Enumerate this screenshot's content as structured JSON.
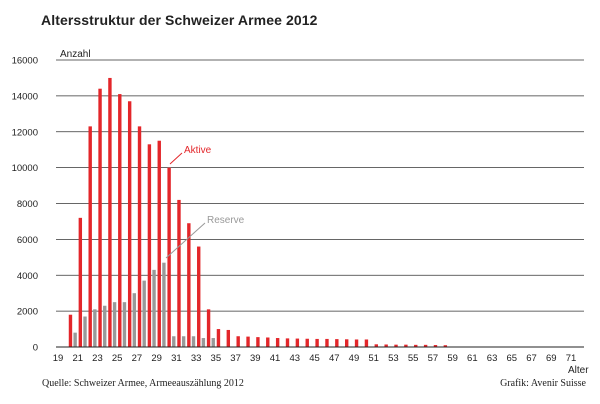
{
  "chart_data": {
    "type": "bar",
    "title": "Altersstruktur der Schweizer Armee 2012",
    "ylabel": "Anzahl",
    "xlabel": "Alter",
    "ylim": [
      0,
      16000
    ],
    "yticks": [
      "0",
      "2000",
      "4000",
      "6000",
      "8000",
      "10000",
      "12000",
      "14000",
      "16000"
    ],
    "xticks": [
      "19",
      "21",
      "23",
      "25",
      "27",
      "29",
      "31",
      "33",
      "35",
      "37",
      "39",
      "41",
      "43",
      "45",
      "47",
      "49",
      "51",
      "53",
      "55",
      "57",
      "59",
      "61",
      "63",
      "65",
      "67",
      "69",
      "71"
    ],
    "categories": [
      19,
      20,
      21,
      22,
      23,
      24,
      25,
      26,
      27,
      28,
      29,
      30,
      31,
      32,
      33,
      34,
      35,
      36,
      37,
      38,
      39,
      40,
      41,
      42,
      43,
      44,
      45,
      46,
      47,
      48,
      49,
      50,
      51,
      52,
      53,
      54,
      55,
      56,
      57,
      58,
      59,
      60,
      61,
      62,
      63,
      64,
      65,
      66,
      67,
      68,
      69,
      70,
      71
    ],
    "grid": true,
    "series": [
      {
        "name": "Aktive",
        "color": "#e3262a",
        "values": [
          0,
          1800,
          7200,
          12300,
          14400,
          15000,
          14100,
          13700,
          12300,
          11300,
          11500,
          10000,
          8200,
          6900,
          5600,
          2100,
          1000,
          950,
          600,
          580,
          550,
          530,
          500,
          480,
          470,
          460,
          450,
          450,
          440,
          430,
          420,
          420,
          150,
          140,
          130,
          130,
          120,
          120,
          110,
          100,
          0,
          0,
          0,
          0,
          0,
          0,
          0,
          0,
          0,
          0,
          0,
          0,
          0
        ]
      },
      {
        "name": "Reserve",
        "color": "#999999",
        "values": [
          0,
          0,
          800,
          1700,
          2100,
          2300,
          2500,
          2500,
          3000,
          3700,
          4300,
          4700,
          600,
          600,
          600,
          500,
          500,
          0,
          0,
          0,
          0,
          0,
          0,
          0,
          0,
          0,
          0,
          0,
          0,
          0,
          0,
          0,
          0,
          0,
          0,
          0,
          0,
          0,
          0,
          0,
          0,
          0,
          0,
          0,
          0,
          0,
          0,
          0,
          0,
          0,
          0,
          0,
          0
        ]
      }
    ]
  },
  "source": "Quelle: Schweizer Armee, Armeeauszählung 2012",
  "credit": "Grafik: Avenir Suisse"
}
